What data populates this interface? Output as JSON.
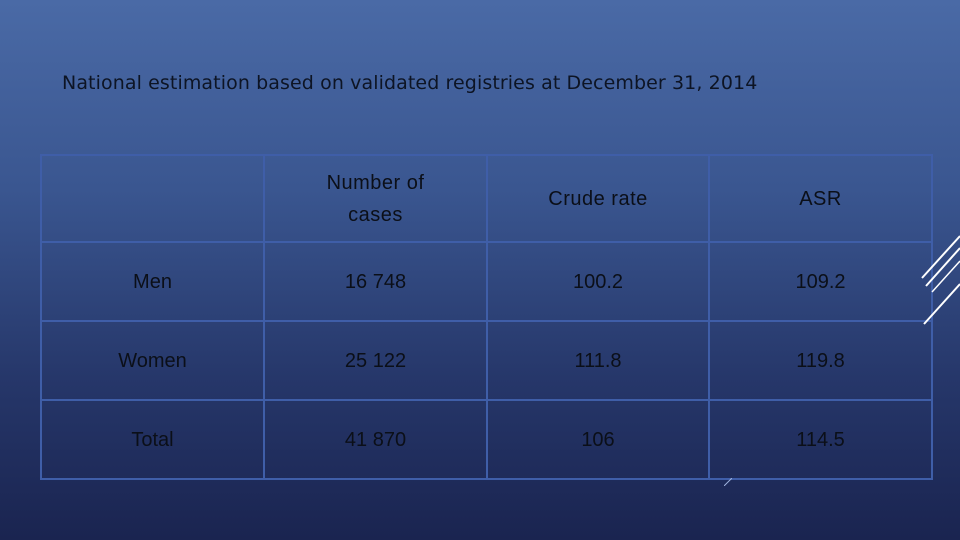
{
  "slide": {
    "title": "National estimation based on validated registries at December 31, 2014"
  },
  "table": {
    "columns": [
      "",
      "Number of cases",
      "Crude rate",
      "ASR"
    ],
    "rows": [
      {
        "label": "Men",
        "cases": "16 748",
        "crude_rate": "100.2",
        "asr": "109.2"
      },
      {
        "label": "Women",
        "cases": "25 122",
        "crude_rate": "111.8",
        "asr": "119.8"
      },
      {
        "label": "Total",
        "cases": "41 870",
        "crude_rate": "106",
        "asr": "114.5"
      }
    ]
  },
  "colors": {
    "background_top": "#4a6aa6",
    "background_bottom": "#1a2450",
    "table_border": "#3f5ea8",
    "text": "#0b0f18",
    "decoration": "#ffffff"
  },
  "icons": {
    "corner_decoration": "diagonal-lines-icon"
  }
}
